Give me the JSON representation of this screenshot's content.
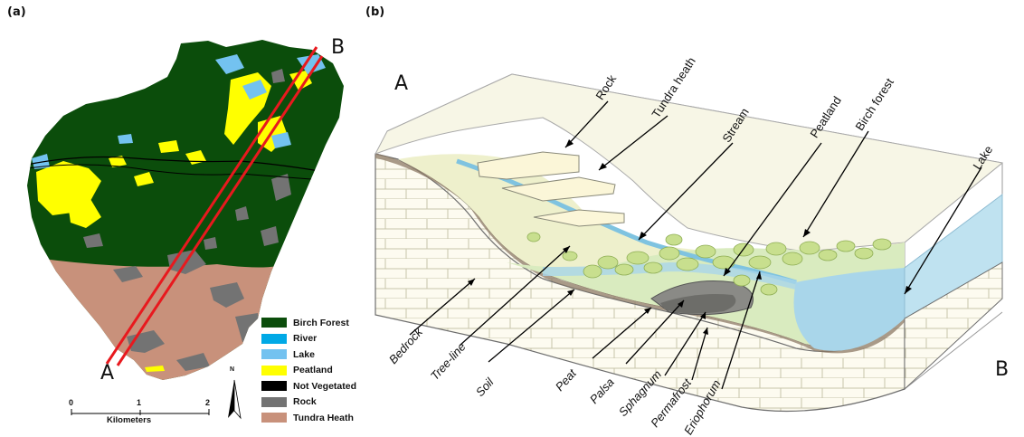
{
  "panel_a": {
    "label": "(a)",
    "point_a": "A",
    "point_b": "B",
    "legend": [
      {
        "label": "Birch Forest",
        "color": "#0b4d0b"
      },
      {
        "label": "River",
        "color": "#00a9e6"
      },
      {
        "label": "Lake",
        "color": "#73c2f0"
      },
      {
        "label": "Peatland",
        "color": "#ffff00"
      },
      {
        "label": "Not Vegetated",
        "color": "#000000"
      },
      {
        "label": "Rock",
        "color": "#737373"
      },
      {
        "label": "Tundra Heath",
        "color": "#c8917b"
      }
    ],
    "scale": {
      "ticks": [
        "0",
        "1",
        "2"
      ],
      "unit": "Kilometers"
    },
    "north": "N",
    "transect_color": "#e8191e"
  },
  "panel_b": {
    "label": "(b)",
    "point_a": "A",
    "point_b": "B",
    "labels": {
      "rock": "Rock",
      "tundra_heath": "Tundra heath",
      "stream": "Stream",
      "peatland": "Peatland",
      "birch_forest": "Birch forest",
      "lake": "Lake",
      "bedrock": "Bedrock",
      "tree_line": "Tree-line",
      "soil": "Soil",
      "peat": "Peat",
      "palsa": "Palsa",
      "sphagnum": "Sphagnum",
      "permafrost": "Permafrost",
      "eriophorum": "Eriophorum"
    }
  }
}
